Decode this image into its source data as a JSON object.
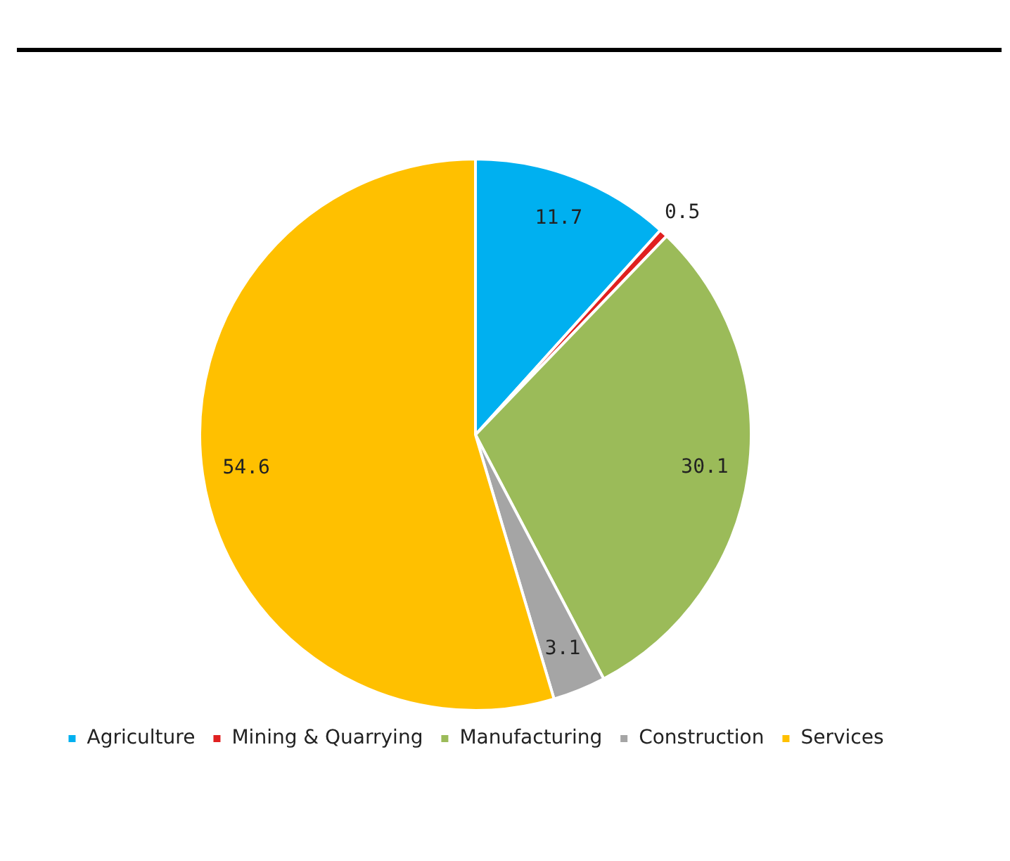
{
  "chart_data": {
    "type": "pie",
    "categories": [
      "Agriculture",
      "Mining & Quarrying",
      "Manufacturing",
      "Construction",
      "Services"
    ],
    "values": [
      11.7,
      0.5,
      30.1,
      3.1,
      54.6
    ],
    "colors": [
      "#00b0f0",
      "#e02020",
      "#9bbb59",
      "#a5a5a5",
      "#ffc000"
    ],
    "data_labels": true,
    "legend": "bottom"
  }
}
